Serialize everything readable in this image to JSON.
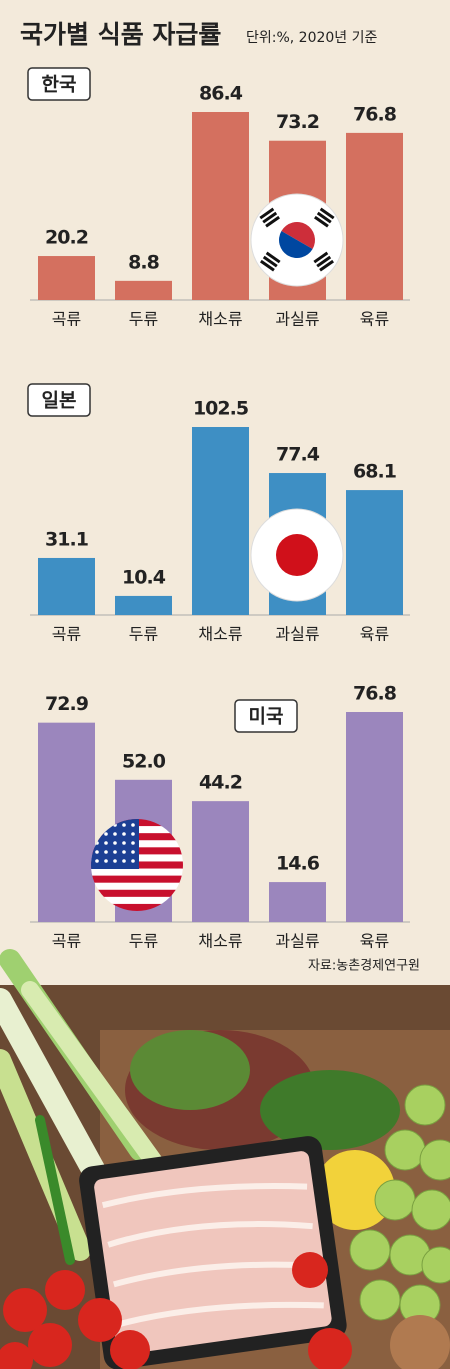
{
  "title": "국가별 식품 자급률",
  "subtitle": "단위:%, 2020년 기준",
  "source": "자료:농촌경제연구원",
  "chart_data": [
    {
      "type": "bar",
      "title": "한국",
      "categories": [
        "곡류",
        "두류",
        "채소류",
        "과실류",
        "육류"
      ],
      "values": [
        20.2,
        8.8,
        86.4,
        73.2,
        76.8
      ],
      "color": "#d4705f"
    },
    {
      "type": "bar",
      "title": "일본",
      "categories": [
        "곡류",
        "두류",
        "채소류",
        "과실류",
        "육류"
      ],
      "values": [
        31.1,
        10.4,
        102.5,
        77.4,
        68.1
      ],
      "color": "#3e8fc4"
    },
    {
      "type": "bar",
      "title": "미국",
      "categories": [
        "곡류",
        "두류",
        "채소류",
        "과실류",
        "육류"
      ],
      "values": [
        72.9,
        52.0,
        44.2,
        14.6,
        76.8
      ],
      "value_labels": [
        "72.9",
        "52.0",
        "44.2",
        "14.6",
        "76.8"
      ],
      "color": "#9b86bd"
    }
  ]
}
